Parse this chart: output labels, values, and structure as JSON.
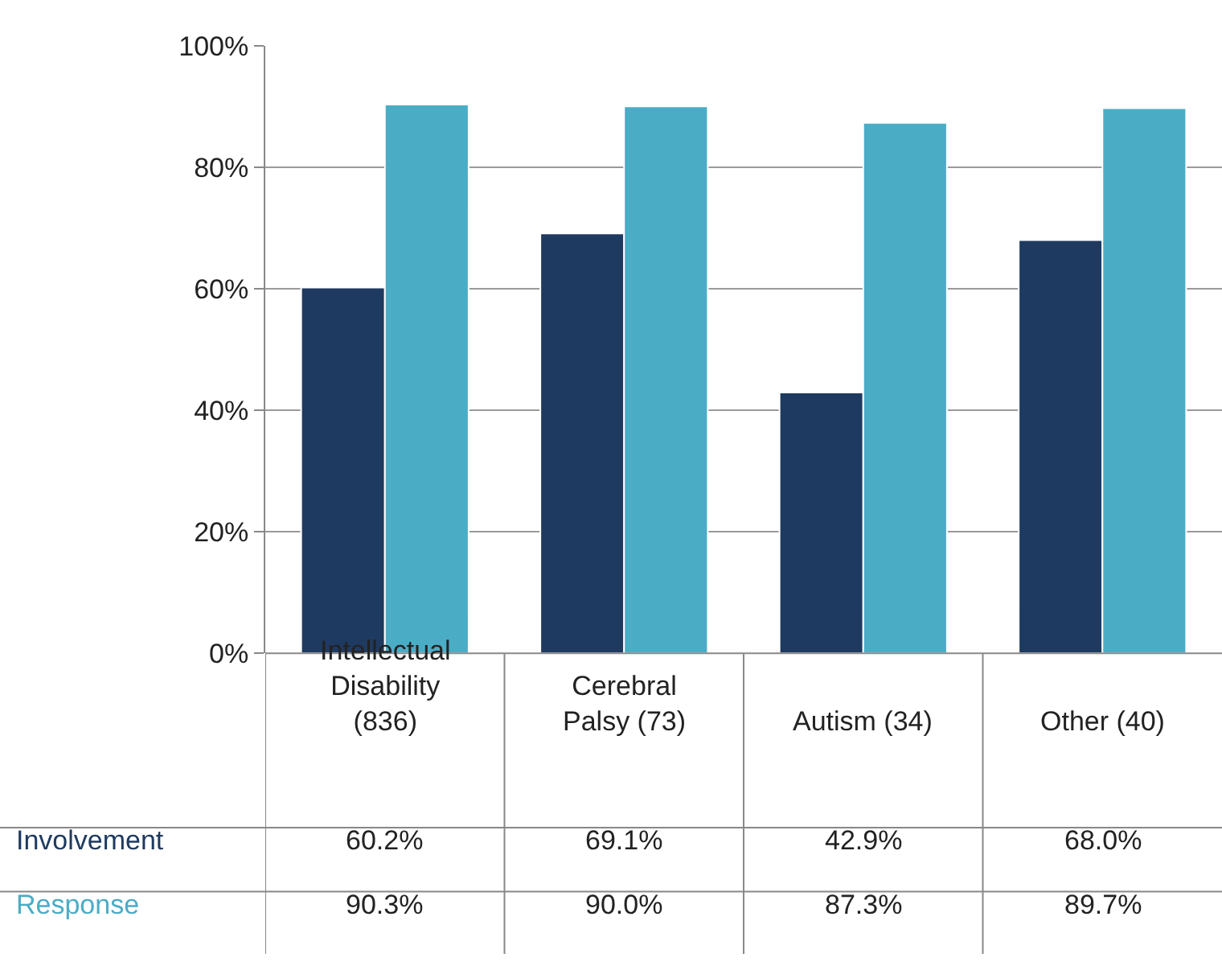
{
  "chart_data": {
    "type": "bar",
    "categories": [
      "Intellectual Disability (836)",
      "Cerebral Palsy (73)",
      "Autism (34)",
      "Other (40)"
    ],
    "series": [
      {
        "name": "Involvement",
        "color": "#1f3a60",
        "values": [
          60.2,
          69.1,
          42.9,
          68.0
        ],
        "value_labels": [
          "60.2%",
          "69.1%",
          "42.9%",
          "68.0%"
        ]
      },
      {
        "name": "Response",
        "color": "#4bacc6",
        "values": [
          90.3,
          90.0,
          87.3,
          89.7
        ],
        "value_labels": [
          "90.3%",
          "90.0%",
          "87.3%",
          "89.7%"
        ]
      }
    ],
    "ylim": [
      0,
      100
    ],
    "yticks": [
      {
        "value": 0,
        "label": "0%"
      },
      {
        "value": 20,
        "label": "20%"
      },
      {
        "value": 40,
        "label": "40%"
      },
      {
        "value": 60,
        "label": "60%"
      },
      {
        "value": 80,
        "label": "80%"
      },
      {
        "value": 100,
        "label": "100%"
      }
    ],
    "grid": "y",
    "legend": false
  }
}
